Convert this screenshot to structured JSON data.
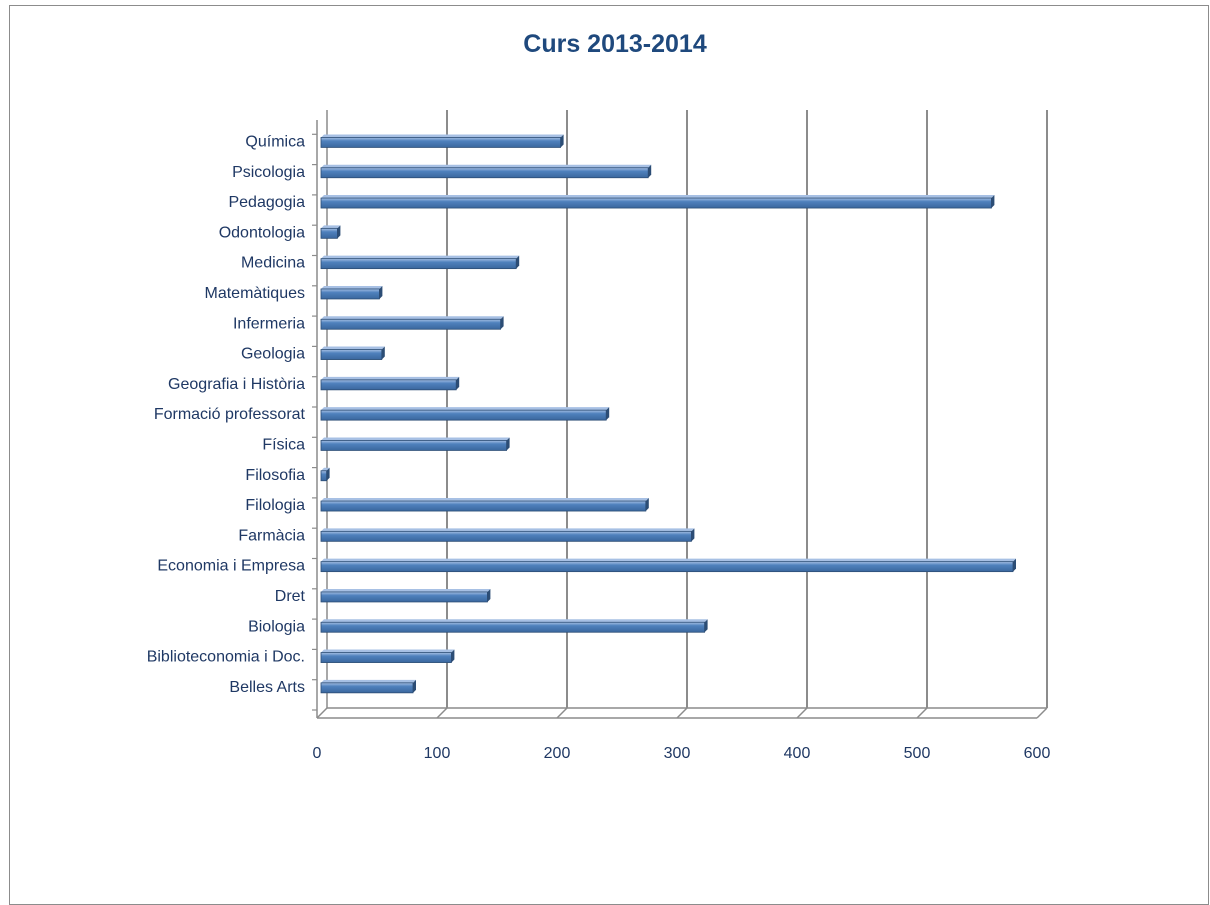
{
  "chart_data": {
    "type": "bar",
    "orientation": "horizontal",
    "title": "Curs 2013-2014",
    "xlabel": "",
    "ylabel": "",
    "categories": [
      "Belles Arts",
      "Biblioteconomia i Doc.",
      "Biologia",
      "Dret",
      "Economia i Empresa",
      "Farmàcia",
      "Filologia",
      "Filosofia",
      "Física",
      "Formació professorat",
      "Geografia i Història",
      "Geologia",
      "Infermeria",
      "Matemàtiques",
      "Medicina",
      "Odontologia",
      "Pedagogia",
      "Psicologia",
      "Química"
    ],
    "values": [
      80,
      112,
      323,
      142,
      580,
      312,
      274,
      8,
      158,
      241,
      116,
      54,
      153,
      52,
      166,
      17,
      562,
      276,
      203
    ],
    "xlim": [
      0,
      600
    ],
    "ticks": [
      "0",
      "100",
      "200",
      "300",
      "400",
      "500",
      "600"
    ],
    "grid": "vertical major gridlines",
    "legend": "none",
    "colors": {
      "bar_fill": "#4f81bd",
      "bar_top": "#a7c0e4",
      "bar_shadow": "#2c4d75",
      "grid": "#8c8c8c",
      "text": "#1f3864",
      "title": "#1f497d"
    }
  }
}
